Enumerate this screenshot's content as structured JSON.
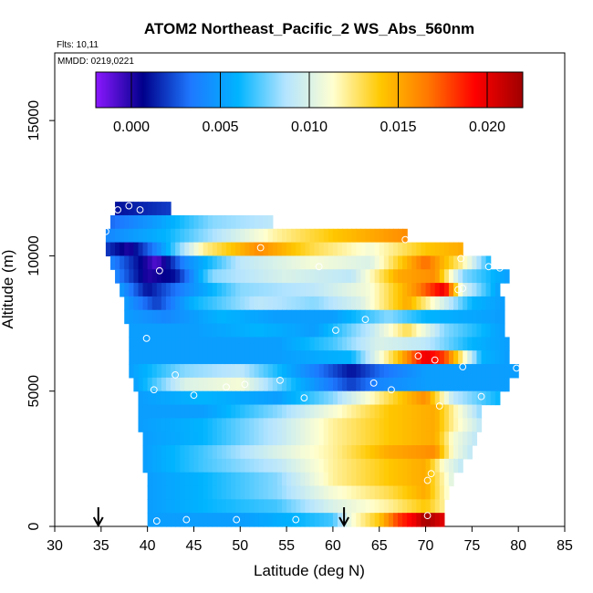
{
  "chart_data": {
    "type": "heatmap",
    "title": "ATOM2 Northeast_Pacific_2 WS_Abs_560nm",
    "flights_label": "Flts: 10,11",
    "dates_label": "MMDD: 0219,0221",
    "xlabel": "Latitude (deg N)",
    "ylabel": "Altitude (m)",
    "xlim": [
      30,
      85
    ],
    "ylim": [
      0,
      17500
    ],
    "x_ticks": [
      "30",
      "35",
      "40",
      "45",
      "50",
      "55",
      "60",
      "65",
      "70",
      "75",
      "80",
      "85"
    ],
    "y_ticks": [
      "0",
      "5000",
      "10000",
      "15000"
    ],
    "grid": false,
    "colorbar": {
      "range": [
        -0.002,
        0.022
      ],
      "tick_values": [
        0.0,
        0.005,
        0.01,
        0.015,
        0.02
      ],
      "tick_labels": [
        "0.000",
        "0.005",
        "0.010",
        "0.015",
        "0.020"
      ],
      "colors": [
        "#8b18ff",
        "#00008b",
        "#1e78ff",
        "#00b4ff",
        "#b4e4ff",
        "#ffffd0",
        "#ffc800",
        "#ff7800",
        "#ff0000",
        "#a00000"
      ]
    },
    "arrows_at_latitude": [
      34.7,
      61.2
    ],
    "bands": [
      {
        "y0": 11500,
        "y1": 12000,
        "x0": 36.5,
        "x1": 42.5,
        "stops": [
          [
            36.5,
            0.001
          ],
          [
            42.5,
            0.002
          ]
        ]
      },
      {
        "y0": 11000,
        "y1": 11500,
        "x0": 36.0,
        "x1": 53.5,
        "stops": [
          [
            36,
            0.003
          ],
          [
            41,
            0.005
          ],
          [
            47,
            0.008
          ],
          [
            53.5,
            0.009
          ]
        ]
      },
      {
        "y0": 10500,
        "y1": 11000,
        "x0": 35.5,
        "x1": 68.0,
        "stops": [
          [
            35.5,
            0.004
          ],
          [
            42,
            0.006
          ],
          [
            48,
            0.009
          ],
          [
            54,
            0.012
          ],
          [
            60,
            0.014
          ],
          [
            68,
            0.016
          ]
        ]
      },
      {
        "y0": 10000,
        "y1": 10500,
        "x0": 35.5,
        "x1": 74.0,
        "stops": [
          [
            35.5,
            0.002
          ],
          [
            38,
            0.0
          ],
          [
            41,
            0.004
          ],
          [
            46,
            0.012
          ],
          [
            52,
            0.016
          ],
          [
            58,
            0.013
          ],
          [
            64,
            0.011
          ],
          [
            70,
            0.014
          ],
          [
            74,
            0.015
          ]
        ]
      },
      {
        "y0": 9500,
        "y1": 10000,
        "x0": 36.0,
        "x1": 77.0,
        "stops": [
          [
            36,
            0.004
          ],
          [
            39,
            0.001
          ],
          [
            41,
            -0.001
          ],
          [
            44,
            0.004
          ],
          [
            50,
            0.009
          ],
          [
            58,
            0.011
          ],
          [
            64,
            0.01
          ],
          [
            70,
            0.017
          ],
          [
            74,
            0.012
          ],
          [
            77,
            0.006
          ]
        ]
      },
      {
        "y0": 9000,
        "y1": 9500,
        "x0": 36.5,
        "x1": 79.0,
        "stops": [
          [
            36.5,
            0.004
          ],
          [
            40,
            0.0
          ],
          [
            43,
            0.001
          ],
          [
            47,
            0.008
          ],
          [
            55,
            0.01
          ],
          [
            62,
            0.009
          ],
          [
            67,
            0.015
          ],
          [
            71,
            0.016
          ],
          [
            74,
            0.008
          ],
          [
            79,
            0.005
          ]
        ]
      },
      {
        "y0": 8500,
        "y1": 9000,
        "x0": 37.0,
        "x1": 78.0,
        "stops": [
          [
            37,
            0.005
          ],
          [
            40,
            0.001
          ],
          [
            44,
            0.004
          ],
          [
            50,
            0.008
          ],
          [
            58,
            0.009
          ],
          [
            64,
            0.011
          ],
          [
            69,
            0.016
          ],
          [
            72,
            0.02
          ],
          [
            74,
            0.01
          ],
          [
            78,
            0.005
          ]
        ]
      },
      {
        "y0": 8000,
        "y1": 8500,
        "x0": 37.5,
        "x1": 78.5,
        "stops": [
          [
            37.5,
            0.005
          ],
          [
            41,
            0.002
          ],
          [
            45,
            0.006
          ],
          [
            52,
            0.009
          ],
          [
            58,
            0.008
          ],
          [
            63,
            0.01
          ],
          [
            68,
            0.015
          ],
          [
            71,
            0.011
          ],
          [
            75,
            0.006
          ],
          [
            78.5,
            0.005
          ]
        ]
      },
      {
        "y0": 7500,
        "y1": 8000,
        "x0": 37.5,
        "x1": 78.5,
        "stops": [
          [
            37.5,
            0.005
          ],
          [
            42,
            0.004
          ],
          [
            48,
            0.006
          ],
          [
            54,
            0.005
          ],
          [
            60,
            0.005
          ],
          [
            66,
            0.008
          ],
          [
            70,
            0.006
          ],
          [
            78.5,
            0.005
          ]
        ]
      },
      {
        "y0": 7000,
        "y1": 7500,
        "x0": 38.0,
        "x1": 78.5,
        "stops": [
          [
            38,
            0.005
          ],
          [
            45,
            0.005
          ],
          [
            52,
            0.006
          ],
          [
            58,
            0.005
          ],
          [
            64,
            0.009
          ],
          [
            68,
            0.013
          ],
          [
            72,
            0.008
          ],
          [
            78.5,
            0.005
          ]
        ]
      },
      {
        "y0": 6500,
        "y1": 7000,
        "x0": 38.0,
        "x1": 79.0,
        "stops": [
          [
            38,
            0.005
          ],
          [
            46,
            0.005
          ],
          [
            54,
            0.005
          ],
          [
            60,
            0.007
          ],
          [
            65,
            0.01
          ],
          [
            70,
            0.009
          ],
          [
            75,
            0.006
          ],
          [
            79,
            0.005
          ]
        ]
      },
      {
        "y0": 6000,
        "y1": 6500,
        "x0": 38.0,
        "x1": 79.0,
        "stops": [
          [
            38,
            0.005
          ],
          [
            46,
            0.005
          ],
          [
            54,
            0.005
          ],
          [
            62,
            0.006
          ],
          [
            67,
            0.014
          ],
          [
            70,
            0.02
          ],
          [
            72,
            0.018
          ],
          [
            76,
            0.006
          ],
          [
            79,
            0.005
          ]
        ]
      },
      {
        "y0": 5500,
        "y1": 6000,
        "x0": 38.0,
        "x1": 80.0,
        "stops": [
          [
            38,
            0.005
          ],
          [
            44,
            0.008
          ],
          [
            50,
            0.009
          ],
          [
            56,
            0.005
          ],
          [
            62,
            0.001
          ],
          [
            65,
            0.003
          ],
          [
            70,
            0.005
          ],
          [
            80,
            0.005
          ]
        ]
      },
      {
        "y0": 5000,
        "y1": 5500,
        "x0": 38.5,
        "x1": 79.0,
        "stops": [
          [
            38.5,
            0.005
          ],
          [
            44,
            0.01
          ],
          [
            50,
            0.011
          ],
          [
            56,
            0.006
          ],
          [
            62,
            0.002
          ],
          [
            65,
            0.004
          ],
          [
            70,
            0.005
          ],
          [
            79,
            0.005
          ]
        ]
      },
      {
        "y0": 4500,
        "y1": 5000,
        "x0": 39.0,
        "x1": 78.0,
        "stops": [
          [
            39,
            0.005
          ],
          [
            46,
            0.006
          ],
          [
            54,
            0.005
          ],
          [
            60,
            0.008
          ],
          [
            66,
            0.013
          ],
          [
            70,
            0.016
          ],
          [
            73,
            0.009
          ],
          [
            78,
            0.006
          ]
        ]
      },
      {
        "y0": 4000,
        "y1": 4500,
        "x0": 39.0,
        "x1": 76.0,
        "stops": [
          [
            39,
            0.005
          ],
          [
            46,
            0.005
          ],
          [
            54,
            0.008
          ],
          [
            60,
            0.011
          ],
          [
            66,
            0.014
          ],
          [
            71,
            0.015
          ],
          [
            73,
            0.012
          ],
          [
            76,
            0.008
          ]
        ]
      },
      {
        "y0": 3500,
        "y1": 4000,
        "x0": 39.0,
        "x1": 76.0,
        "stops": [
          [
            39,
            0.005
          ],
          [
            46,
            0.006
          ],
          [
            54,
            0.009
          ],
          [
            60,
            0.012
          ],
          [
            66,
            0.014
          ],
          [
            71,
            0.015
          ],
          [
            73,
            0.012
          ],
          [
            76,
            0.009
          ]
        ]
      },
      {
        "y0": 3000,
        "y1": 3500,
        "x0": 39.5,
        "x1": 75.5,
        "stops": [
          [
            39.5,
            0.005
          ],
          [
            46,
            0.006
          ],
          [
            54,
            0.009
          ],
          [
            60,
            0.012
          ],
          [
            66,
            0.014
          ],
          [
            71,
            0.015
          ],
          [
            73,
            0.011
          ],
          [
            75.5,
            0.009
          ]
        ]
      },
      {
        "y0": 2500,
        "y1": 3000,
        "x0": 39.5,
        "x1": 75.0,
        "stops": [
          [
            39.5,
            0.005
          ],
          [
            46,
            0.007
          ],
          [
            54,
            0.01
          ],
          [
            60,
            0.012
          ],
          [
            66,
            0.015
          ],
          [
            71,
            0.016
          ],
          [
            73,
            0.011
          ],
          [
            75,
            0.009
          ]
        ]
      },
      {
        "y0": 2000,
        "y1": 2500,
        "x0": 39.5,
        "x1": 74.0,
        "stops": [
          [
            39.5,
            0.005
          ],
          [
            46,
            0.007
          ],
          [
            54,
            0.009
          ],
          [
            60,
            0.012
          ],
          [
            66,
            0.014
          ],
          [
            70,
            0.015
          ],
          [
            72,
            0.011
          ],
          [
            74,
            0.009
          ]
        ]
      },
      {
        "y0": 1500,
        "y1": 2000,
        "x0": 40.0,
        "x1": 73.0,
        "stops": [
          [
            40,
            0.005
          ],
          [
            46,
            0.006
          ],
          [
            54,
            0.008
          ],
          [
            60,
            0.012
          ],
          [
            66,
            0.014
          ],
          [
            70,
            0.015
          ],
          [
            73,
            0.01
          ]
        ]
      },
      {
        "y0": 1000,
        "y1": 1500,
        "x0": 40.0,
        "x1": 72.5,
        "stops": [
          [
            40,
            0.005
          ],
          [
            46,
            0.006
          ],
          [
            54,
            0.008
          ],
          [
            60,
            0.011
          ],
          [
            66,
            0.013
          ],
          [
            70,
            0.015
          ],
          [
            72.5,
            0.011
          ]
        ]
      },
      {
        "y0": 500,
        "y1": 1000,
        "x0": 40.0,
        "x1": 72.0,
        "stops": [
          [
            40,
            0.005
          ],
          [
            46,
            0.006
          ],
          [
            54,
            0.007
          ],
          [
            60,
            0.01
          ],
          [
            66,
            0.012
          ],
          [
            70,
            0.014
          ],
          [
            72,
            0.012
          ]
        ]
      },
      {
        "y0": 0,
        "y1": 500,
        "x0": 40.0,
        "x1": 72.0,
        "stops": [
          [
            40,
            0.005
          ],
          [
            50,
            0.005
          ],
          [
            56,
            0.006
          ],
          [
            60,
            0.007
          ],
          [
            62,
            0.011
          ],
          [
            65,
            0.014
          ],
          [
            67,
            0.018
          ],
          [
            69,
            0.02
          ],
          [
            70,
            0.022
          ],
          [
            72,
            0.02
          ]
        ]
      }
    ],
    "points": [
      {
        "x": 36.8,
        "y": 11700
      },
      {
        "x": 38.0,
        "y": 11850
      },
      {
        "x": 39.2,
        "y": 11700
      },
      {
        "x": 35.5,
        "y": 10900
      },
      {
        "x": 52.2,
        "y": 10300
      },
      {
        "x": 67.8,
        "y": 10600
      },
      {
        "x": 58.5,
        "y": 9600
      },
      {
        "x": 73.8,
        "y": 9900
      },
      {
        "x": 76.8,
        "y": 9600
      },
      {
        "x": 78.0,
        "y": 9550
      },
      {
        "x": 41.3,
        "y": 9450
      },
      {
        "x": 73.5,
        "y": 8750
      },
      {
        "x": 74.0,
        "y": 8800
      },
      {
        "x": 63.5,
        "y": 7650
      },
      {
        "x": 60.3,
        "y": 7250
      },
      {
        "x": 39.9,
        "y": 6950
      },
      {
        "x": 69.2,
        "y": 6300
      },
      {
        "x": 71.0,
        "y": 6150
      },
      {
        "x": 74.0,
        "y": 5900
      },
      {
        "x": 79.8,
        "y": 5850
      },
      {
        "x": 43.0,
        "y": 5600
      },
      {
        "x": 54.3,
        "y": 5400
      },
      {
        "x": 50.5,
        "y": 5250
      },
      {
        "x": 48.5,
        "y": 5150
      },
      {
        "x": 64.4,
        "y": 5300
      },
      {
        "x": 66.3,
        "y": 5050
      },
      {
        "x": 40.7,
        "y": 5050
      },
      {
        "x": 45.0,
        "y": 4850
      },
      {
        "x": 56.9,
        "y": 4750
      },
      {
        "x": 76.0,
        "y": 4800
      },
      {
        "x": 71.5,
        "y": 4450
      },
      {
        "x": 70.6,
        "y": 1950
      },
      {
        "x": 70.2,
        "y": 1700
      },
      {
        "x": 41.0,
        "y": 200
      },
      {
        "x": 44.2,
        "y": 250
      },
      {
        "x": 49.6,
        "y": 250
      },
      {
        "x": 56.0,
        "y": 250
      },
      {
        "x": 70.2,
        "y": 400
      }
    ]
  }
}
